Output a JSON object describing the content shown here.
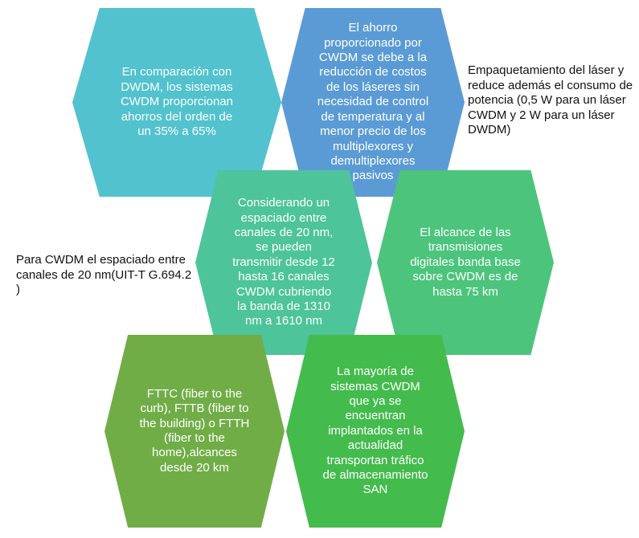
{
  "hexagons": [
    {
      "text": "En comparación con\nDWDM, los sistemas\nCWDM proporcionan\nahorros del orden de\nun 35% a 65%",
      "color": "#52C2CE"
    },
    {
      "text": "El ahorro\nproporcionado por\nCWDM se debe a la\nreducción de costos\nde los láseres sin\nnecesidad de control\nde temperatura y al\nmenor precio de los\nmultiplexores y\ndemultiplexores\npasivos",
      "color": "#5B9BD5"
    },
    {
      "text": "Considerando un\nespaciado entre\ncanales de 20 nm,\nse pueden\ntransmitir desde 12\nhasta 16 canales\nCWDM cubriendo\nla banda de 1310\nnm a 1610 nm",
      "color": "#4DC49A"
    },
    {
      "text": "El alcance de las\ntransmisiones\ndigitales banda base\nsobre CWDM es de\nhasta 75 km",
      "color": "#4CC47C"
    },
    {
      "text": "FTTC (fiber to the\ncurb), FTTB (fiber to\nthe building) o FTTH\n(fiber to the\nhome),alcances\ndesde 20 km",
      "color": "#70AD47"
    },
    {
      "text": "La mayoría de\nsistemas CWDM\nque ya se\nencuentran\nimplantados en la\nactualidad\ntransportan tráfico\nde almacenamiento\nSAN",
      "color": "#44BB4D"
    }
  ],
  "side_notes": {
    "top_right": "Empaquetamiento del láser y\nreduce además el consumo de\npotencia (0,5 W para un láser\nCWDM y 2 W para un láser\nDWDM)",
    "middle_left": "Para CWDM el espaciado entre\ncanales de 20 nm(UIT-T G.694.2 )"
  }
}
